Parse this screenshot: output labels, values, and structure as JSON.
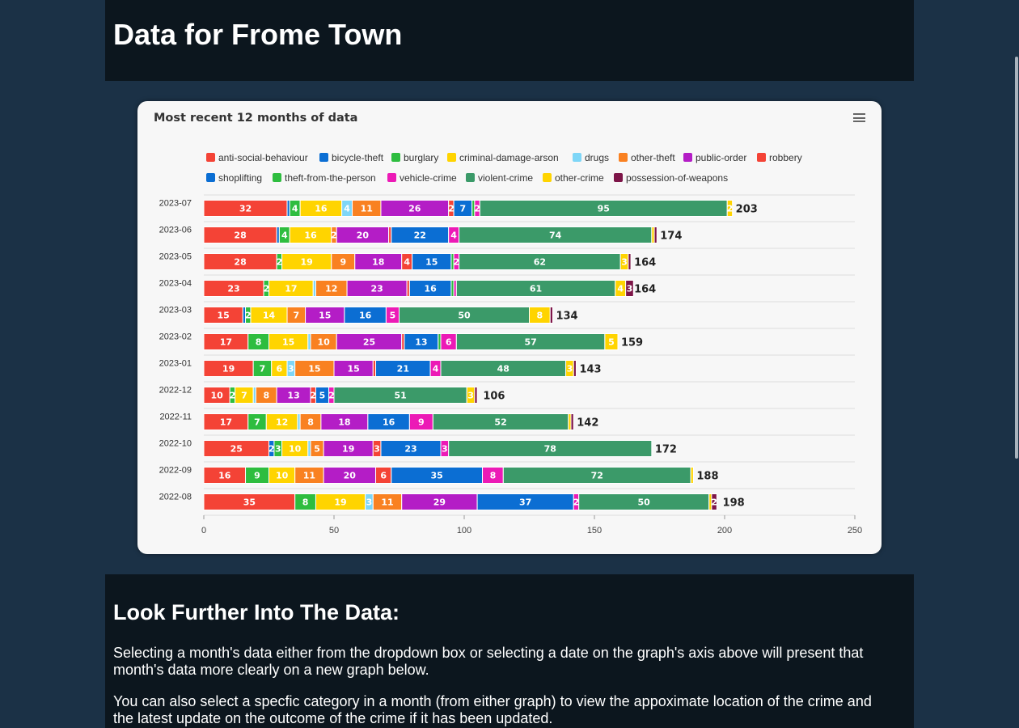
{
  "header": {
    "title": "Data for Frome Town"
  },
  "chart": {
    "title": "Most recent 12 months of data",
    "menu_icon": "hamburger-menu-icon"
  },
  "chart_data": {
    "type": "bar",
    "orientation": "horizontal",
    "stacked": true,
    "title": "Most recent 12 months of data",
    "categories": [
      "2023-07",
      "2023-06",
      "2023-05",
      "2023-04",
      "2023-03",
      "2023-02",
      "2023-01",
      "2022-12",
      "2022-11",
      "2022-10",
      "2022-09",
      "2022-08"
    ],
    "totals": [
      203,
      174,
      164,
      164,
      134,
      159,
      143,
      106,
      142,
      172,
      188,
      198
    ],
    "xlim": [
      0,
      250
    ],
    "xticks": [
      0,
      50,
      100,
      150,
      200,
      250
    ],
    "grid": true,
    "legend": "top",
    "series": [
      {
        "name": "anti-social-behaviour",
        "color": "#f44336",
        "values": [
          32,
          28,
          28,
          23,
          15,
          17,
          19,
          10,
          17,
          25,
          16,
          35
        ]
      },
      {
        "name": "bicycle-theft",
        "color": "#0b6ed3",
        "values": [
          1,
          1,
          0,
          0,
          1,
          0,
          0,
          0,
          0,
          2,
          0,
          0
        ]
      },
      {
        "name": "burglary",
        "color": "#2ebd3f",
        "values": [
          4,
          4,
          2,
          2,
          2,
          8,
          7,
          2,
          7,
          3,
          9,
          8
        ]
      },
      {
        "name": "criminal-damage-arson",
        "color": "#ffd400",
        "values": [
          16,
          16,
          19,
          17,
          14,
          15,
          6,
          7,
          12,
          10,
          10,
          19
        ]
      },
      {
        "name": "drugs",
        "color": "#7ed6f7",
        "values": [
          4,
          0,
          0,
          1,
          0,
          1,
          3,
          1,
          1,
          1,
          0,
          3
        ]
      },
      {
        "name": "other-theft",
        "color": "#f98121",
        "values": [
          11,
          2,
          9,
          12,
          7,
          10,
          15,
          8,
          8,
          5,
          11,
          11
        ]
      },
      {
        "name": "public-order",
        "color": "#b41dc6",
        "values": [
          26,
          20,
          18,
          23,
          15,
          25,
          15,
          13,
          18,
          19,
          20,
          29
        ]
      },
      {
        "name": "robbery",
        "color": "#f44336",
        "values": [
          2,
          1,
          4,
          1,
          0,
          1,
          1,
          2,
          0,
          3,
          6,
          0
        ]
      },
      {
        "name": "shoplifting",
        "color": "#0b6ed3",
        "values": [
          7,
          22,
          15,
          16,
          16,
          13,
          21,
          5,
          16,
          23,
          35,
          37
        ]
      },
      {
        "name": "theft-from-the-person",
        "color": "#2ebd3f",
        "values": [
          1,
          0,
          1,
          1,
          0,
          1,
          0,
          0,
          0,
          0,
          0,
          0
        ]
      },
      {
        "name": "vehicle-crime",
        "color": "#ec1ab6",
        "values": [
          2,
          4,
          2,
          1,
          5,
          6,
          4,
          2,
          9,
          3,
          8,
          2
        ]
      },
      {
        "name": "violent-crime",
        "color": "#3b9a69",
        "values": [
          95,
          74,
          62,
          61,
          50,
          57,
          48,
          51,
          52,
          78,
          72,
          50
        ]
      },
      {
        "name": "other-crime",
        "color": "#ffd400",
        "values": [
          2,
          1,
          3,
          4,
          8,
          5,
          3,
          3,
          1,
          0,
          1,
          1
        ]
      },
      {
        "name": "possession-of-weapons",
        "color": "#7d1548",
        "values": [
          0,
          1,
          1,
          3,
          1,
          0,
          1,
          1,
          1,
          0,
          0,
          2
        ]
      }
    ]
  },
  "info": {
    "heading": "Look Further Into The Data:",
    "para1": "Selecting a month's data either from the dropdown box or selecting a date on the graph's axis above will present that month's data more clearly on a new graph below.",
    "para2": "You can also select a specfic category in a month (from either graph) to view the appoximate location of the crime and the latest update on the outcome of the crime if it has been updated."
  }
}
